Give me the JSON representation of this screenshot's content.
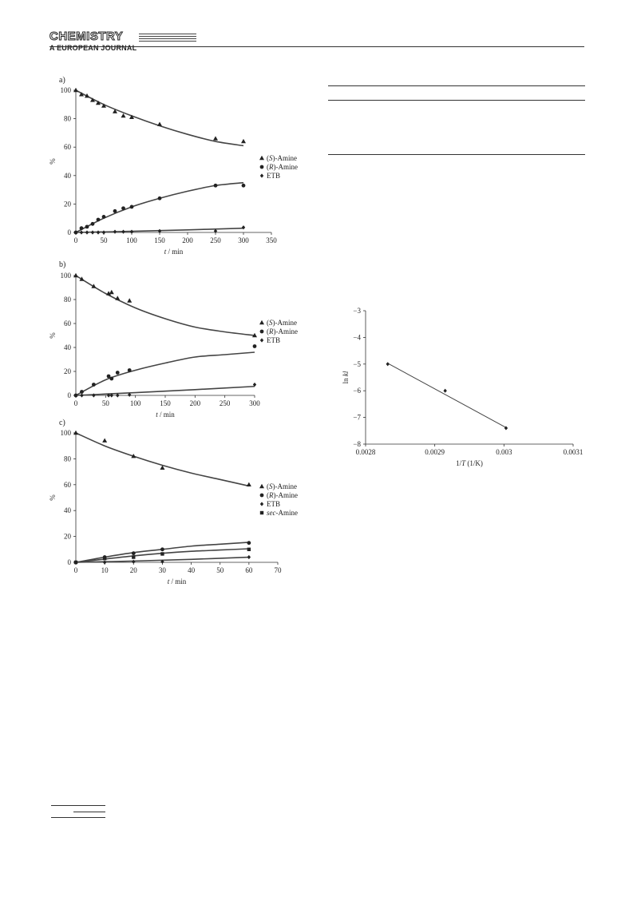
{
  "header": {
    "logo": "CHEMISTRY",
    "subtitle": "A EUROPEAN JOURNAL"
  },
  "chart_data": [
    {
      "type": "scatter",
      "panel_label": "a)",
      "xlabel": "t / min",
      "ylabel": "%",
      "xlim": [
        0,
        350
      ],
      "ylim": [
        0,
        100
      ],
      "xticks": [
        0,
        50,
        100,
        150,
        200,
        250,
        300,
        350
      ],
      "yticks": [
        0,
        20,
        40,
        60,
        80,
        100
      ],
      "legend_position": "right",
      "series": [
        {
          "name": "(S)-Amine",
          "marker": "triangle",
          "x": [
            0,
            10,
            20,
            30,
            40,
            50,
            70,
            85,
            100,
            150,
            250,
            300
          ],
          "y": [
            100,
            97,
            96,
            93,
            91,
            89,
            85,
            82,
            81,
            76,
            66,
            64
          ],
          "fit": {
            "x": [
              0,
              50,
              100,
              150,
              200,
              250,
              300
            ],
            "y": [
              100,
              90,
              82,
              75,
              69,
              64,
              61
            ]
          }
        },
        {
          "name": "(R)-Amine",
          "marker": "circle",
          "x": [
            0,
            10,
            20,
            30,
            40,
            50,
            70,
            85,
            100,
            150,
            250,
            300
          ],
          "y": [
            0,
            3,
            4,
            6,
            9,
            11,
            15,
            17,
            18,
            24,
            33,
            33
          ],
          "fit": {
            "x": [
              0,
              50,
              100,
              150,
              200,
              250,
              300
            ],
            "y": [
              0,
              10,
              18,
              24,
              29,
              33,
              35
            ]
          }
        },
        {
          "name": "ETB",
          "marker": "diamond",
          "x": [
            0,
            10,
            20,
            30,
            40,
            50,
            70,
            85,
            100,
            150,
            250,
            300
          ],
          "y": [
            0,
            0,
            0,
            0,
            0,
            0,
            0.5,
            0.5,
            0.5,
            1,
            1,
            3.5
          ],
          "fit": {
            "x": [
              0,
              100,
              200,
              300
            ],
            "y": [
              0,
              0.8,
              1.8,
              3
            ]
          }
        }
      ]
    },
    {
      "type": "scatter",
      "panel_label": "b)",
      "xlabel": "t / min",
      "ylabel": "%",
      "xlim": [
        0,
        300
      ],
      "ylim": [
        0,
        100
      ],
      "xticks": [
        0,
        50,
        100,
        150,
        200,
        250,
        300
      ],
      "yticks": [
        0,
        20,
        40,
        60,
        80,
        100
      ],
      "legend_position": "right",
      "series": [
        {
          "name": "(S)-Amine",
          "marker": "triangle",
          "x": [
            0,
            10,
            30,
            55,
            60,
            70,
            90,
            300
          ],
          "y": [
            100,
            97,
            91,
            85,
            86,
            81,
            79,
            50
          ],
          "fit": {
            "x": [
              0,
              50,
              100,
              150,
              200,
              250,
              300
            ],
            "y": [
              100,
              85,
              73,
              64,
              57,
              53,
              50
            ]
          }
        },
        {
          "name": "(R)-Amine",
          "marker": "circle",
          "x": [
            0,
            10,
            30,
            55,
            60,
            70,
            90,
            300
          ],
          "y": [
            0,
            3,
            9,
            16,
            14,
            19,
            21,
            41
          ],
          "fit": {
            "x": [
              0,
              50,
              100,
              150,
              200,
              250,
              300
            ],
            "y": [
              0,
              13,
              21,
              27,
              32,
              34,
              36
            ]
          }
        },
        {
          "name": "ETB",
          "marker": "diamond",
          "x": [
            0,
            10,
            30,
            55,
            60,
            70,
            90,
            300
          ],
          "y": [
            0,
            0,
            0,
            0,
            0,
            0,
            0.5,
            9
          ],
          "fit": {
            "x": [
              0,
              100,
              200,
              300
            ],
            "y": [
              0,
              2.3,
              4.8,
              7.5
            ]
          }
        }
      ]
    },
    {
      "type": "scatter",
      "panel_label": "c)",
      "xlabel": "t / min",
      "ylabel": "%",
      "xlim": [
        0,
        70
      ],
      "ylim": [
        0,
        100
      ],
      "xticks": [
        0,
        10,
        20,
        30,
        40,
        50,
        60,
        70
      ],
      "yticks": [
        0,
        20,
        40,
        60,
        80,
        100
      ],
      "legend_position": "right",
      "series": [
        {
          "name": "(S)-Amine",
          "marker": "triangle",
          "x": [
            0,
            10,
            20,
            30,
            60
          ],
          "y": [
            100,
            94,
            82,
            73,
            60
          ],
          "fit": {
            "x": [
              0,
              10,
              20,
              30,
              40,
              50,
              60
            ],
            "y": [
              100,
              90,
              82,
              75,
              69,
              64,
              59
            ]
          }
        },
        {
          "name": "(R)-Amine",
          "marker": "circle",
          "x": [
            0,
            10,
            20,
            30,
            60
          ],
          "y": [
            0,
            4,
            7,
            10,
            15
          ],
          "fit": {
            "x": [
              0,
              10,
              20,
              30,
              40,
              50,
              60
            ],
            "y": [
              0,
              4,
              7.5,
              10,
              12.5,
              14,
              15.5
            ]
          }
        },
        {
          "name": "ETB",
          "marker": "diamond",
          "x": [
            0,
            10,
            20,
            30,
            60
          ],
          "y": [
            0,
            0,
            0.5,
            0.5,
            4
          ],
          "fit": {
            "x": [
              0,
              20,
              40,
              60
            ],
            "y": [
              0,
              1,
              2.3,
              4
            ]
          }
        },
        {
          "name": "sec-Amine",
          "marker": "square",
          "x": [
            0,
            10,
            20,
            30,
            60
          ],
          "y": [
            0,
            3,
            4,
            6.5,
            10
          ],
          "fit": {
            "x": [
              0,
              10,
              20,
              30,
              40,
              50,
              60
            ],
            "y": [
              0,
              2.5,
              5,
              7,
              8.5,
              9.5,
              10.5
            ]
          }
        }
      ]
    },
    {
      "type": "scatter",
      "panel_label": "",
      "xlabel": "1/T (1/K)",
      "ylabel": "ln kl",
      "xlim": [
        0.0028,
        0.0031
      ],
      "ylim": [
        -8,
        -3
      ],
      "xticks": [
        0.0028,
        0.0029,
        0.003,
        0.0031
      ],
      "xtick_labels": [
        "0.0028",
        "0.0029",
        "0.003",
        "0.0031"
      ],
      "yticks": [
        -8,
        -7,
        -6,
        -5,
        -4,
        -3
      ],
      "series": [
        {
          "name": "",
          "marker": "diamond",
          "x": [
            0.002832,
            0.002915,
            0.003003
          ],
          "y": [
            -5.0,
            -6.0,
            -7.4
          ],
          "fit": {
            "x": [
              0.002832,
              0.003003
            ],
            "y": [
              -4.97,
              -7.38
            ]
          }
        }
      ]
    }
  ]
}
